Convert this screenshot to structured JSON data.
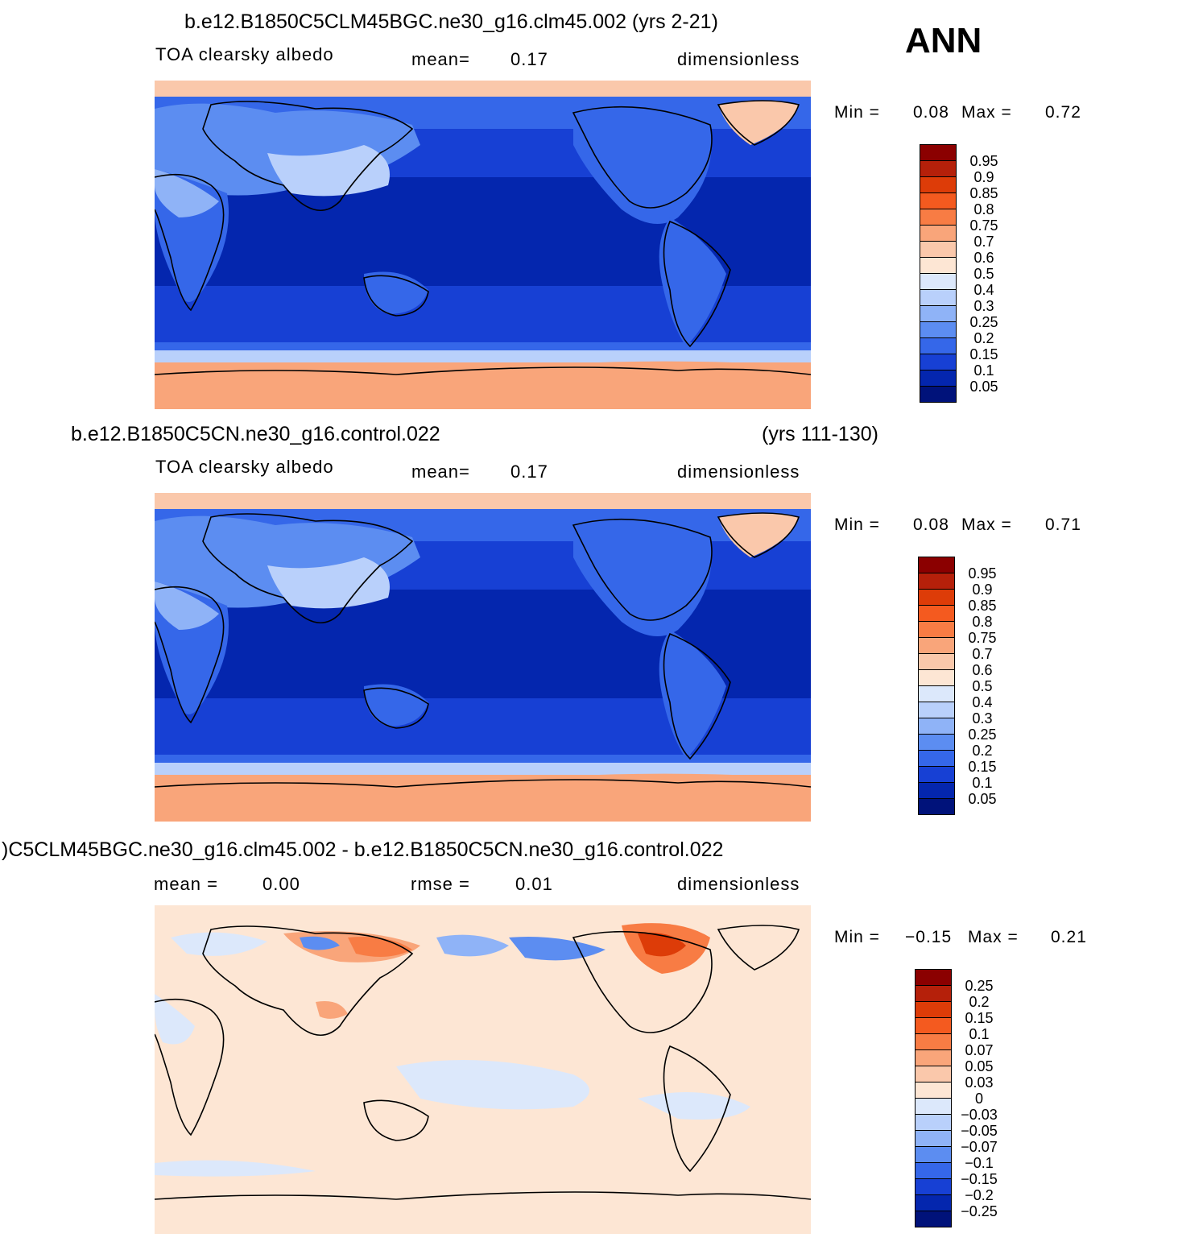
{
  "season": "ANN",
  "panels": [
    {
      "title": "b.e12.B1850C5CLM45BGC.ne30_g16.clm45.002 (yrs 2-21)",
      "title_right": "",
      "left_label": "TOA clearsky albedo",
      "center_label_name": "mean=",
      "center_label_value": "0.17",
      "right_label": "dimensionless",
      "rmse_name": "",
      "rmse_value": "",
      "min_label": "Min =",
      "min_value": "0.08",
      "max_label": "Max =",
      "max_value": "0.72",
      "colorbar": {
        "labels": [
          "0.95",
          "0.9",
          "0.85",
          "0.8",
          "0.75",
          "0.7",
          "0.6",
          "0.5",
          "0.4",
          "0.3",
          "0.25",
          "0.2",
          "0.15",
          "0.1",
          "0.05"
        ],
        "colors": [
          "#8b0000",
          "#b5200a",
          "#dd3c08",
          "#f45a1f",
          "#f87c44",
          "#f9a57a",
          "#fac8ab",
          "#fde6d4",
          "#dce8fb",
          "#b9d0fb",
          "#8fb3f7",
          "#5c8df1",
          "#3567e9",
          "#1740d4",
          "#0426ae",
          "#00127a"
        ]
      }
    },
    {
      "title": "b.e12.B1850C5CN.ne30_g16.control.022",
      "title_right": "(yrs 111-130)",
      "left_label": "TOA clearsky albedo",
      "center_label_name": "mean=",
      "center_label_value": "0.17",
      "right_label": "dimensionless",
      "rmse_name": "",
      "rmse_value": "",
      "min_label": "Min =",
      "min_value": "0.08",
      "max_label": "Max =",
      "max_value": "0.71",
      "colorbar": {
        "labels": [
          "0.95",
          "0.9",
          "0.85",
          "0.8",
          "0.75",
          "0.7",
          "0.6",
          "0.5",
          "0.4",
          "0.3",
          "0.25",
          "0.2",
          "0.15",
          "0.1",
          "0.05"
        ],
        "colors": [
          "#8b0000",
          "#b5200a",
          "#dd3c08",
          "#f45a1f",
          "#f87c44",
          "#f9a57a",
          "#fac8ab",
          "#fde6d4",
          "#dce8fb",
          "#b9d0fb",
          "#8fb3f7",
          "#5c8df1",
          "#3567e9",
          "#1740d4",
          "#0426ae",
          "#00127a"
        ]
      }
    },
    {
      "title": ")C5CLM45BGC.ne30_g16.clm45.002 - b.e12.B1850C5CN.ne30_g16.control.022",
      "title_right": "",
      "left_label": "mean =",
      "center_label_name": "",
      "center_label_value": "0.00",
      "right_label": "dimensionless",
      "rmse_name": "rmse =",
      "rmse_value": "0.01",
      "min_label": "Min =",
      "min_value": "−0.15",
      "max_label": "Max =",
      "max_value": "0.21",
      "colorbar": {
        "labels": [
          "0.25",
          "0.2",
          "0.15",
          "0.1",
          "0.07",
          "0.05",
          "0.03",
          "0",
          "−0.03",
          "−0.05",
          "−0.07",
          "−0.1",
          "−0.15",
          "−0.2",
          "−0.25"
        ],
        "colors": [
          "#8b0000",
          "#b5200a",
          "#dd3c08",
          "#f45a1f",
          "#f87c44",
          "#f9a57a",
          "#fac8ab",
          "#fde6d4",
          "#dce8fb",
          "#b9d0fb",
          "#8fb3f7",
          "#5c8df1",
          "#3567e9",
          "#1740d4",
          "#0426ae",
          "#00127a"
        ]
      }
    }
  ]
}
